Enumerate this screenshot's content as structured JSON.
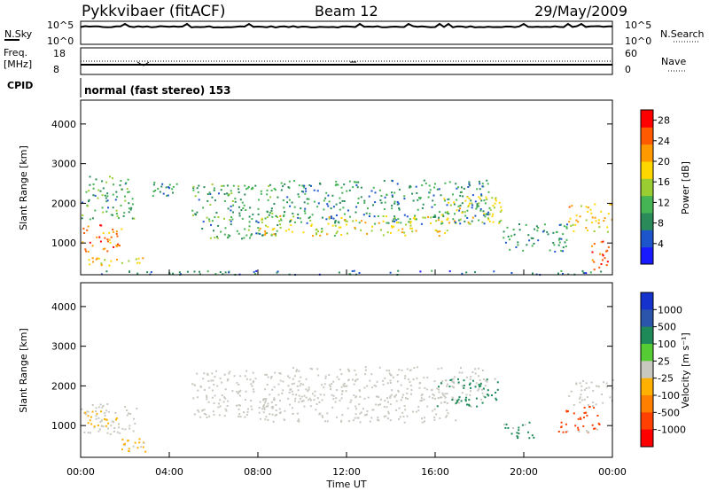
{
  "header": {
    "station": "Pykkvibaer (fitACF)",
    "beam": "Beam 12",
    "date": "29/May/2009"
  },
  "strip_panels": {
    "nsky": {
      "left_label": "N.Sky",
      "right_label": "N.Search",
      "ticks_left": [
        "10^5",
        "10^0"
      ],
      "ticks_right": [
        "10^5",
        "10^0"
      ]
    },
    "freq": {
      "left_label_1": "Freq.",
      "left_label_2": "[MHz]",
      "right_label": "Nave",
      "ticks_left": [
        "18",
        "8"
      ],
      "ticks_right": [
        "60",
        "0"
      ]
    },
    "cpid": {
      "label": "CPID",
      "text": "normal (fast stereo) 153"
    }
  },
  "colors": {
    "power": [
      "#1a1aff",
      "#1c55cc",
      "#2a8a5a",
      "#44b455",
      "#9acd32",
      "#ffd700",
      "#ff9900",
      "#ff5a00",
      "#ff0000"
    ],
    "velocity": [
      "#1533cc",
      "#2a55aa",
      "#1e8a5a",
      "#55cc33",
      "#c8c8c0",
      "#ffb000",
      "#ff8000",
      "#ff4000",
      "#ff0000"
    ]
  },
  "chart_data": [
    {
      "type": "heatmap",
      "name": "power",
      "ylabel": "Slant Range [km]",
      "yticks": [
        "1000",
        "2000",
        "3000",
        "4000"
      ],
      "ylim": [
        200,
        4600
      ],
      "xlim": [
        0,
        24
      ],
      "xticks": [
        "00:00",
        "04:00",
        "08:00",
        "12:00",
        "16:00",
        "20:00",
        "00:00"
      ],
      "colorbar": {
        "label": "Power [dB]",
        "ticks": [
          "4",
          "8",
          "12",
          "16",
          "20",
          "24",
          "28"
        ],
        "range": [
          0,
          30
        ]
      },
      "regions": [
        {
          "t": [
            0.0,
            2.0
          ],
          "r": [
            800,
            1500
          ],
          "level": 24
        },
        {
          "t": [
            0.3,
            3.0
          ],
          "r": [
            450,
            650
          ],
          "level": 20
        },
        {
          "t": [
            0.0,
            2.4
          ],
          "r": [
            1600,
            2700
          ],
          "level": 10
        },
        {
          "t": [
            3.2,
            4.4
          ],
          "r": [
            2200,
            2600
          ],
          "level": 8
        },
        {
          "t": [
            5.0,
            9.0
          ],
          "r": [
            1100,
            2500
          ],
          "level": 10
        },
        {
          "t": [
            8.0,
            17.0
          ],
          "r": [
            1200,
            1700
          ],
          "level": 18
        },
        {
          "t": [
            9.0,
            18.5
          ],
          "r": [
            1500,
            2600
          ],
          "level": 8
        },
        {
          "t": [
            16.0,
            19.0
          ],
          "r": [
            1500,
            2200
          ],
          "level": 16
        },
        {
          "t": [
            19.0,
            22.0
          ],
          "r": [
            800,
            1500
          ],
          "level": 8
        },
        {
          "t": [
            22.0,
            24.0
          ],
          "r": [
            1300,
            2000
          ],
          "level": 20
        },
        {
          "t": [
            23.0,
            23.8
          ],
          "r": [
            350,
            1100
          ],
          "level": 26
        },
        {
          "t": [
            0.0,
            24.0
          ],
          "r": [
            220,
            320
          ],
          "level": 6
        }
      ]
    },
    {
      "type": "heatmap",
      "name": "velocity",
      "ylabel": "Slant Range [km]",
      "yticks": [
        "1000",
        "2000",
        "3000",
        "4000"
      ],
      "ylim": [
        200,
        4600
      ],
      "xlim": [
        0,
        24
      ],
      "xticks": [
        "00:00",
        "04:00",
        "08:00",
        "12:00",
        "16:00",
        "20:00",
        "00:00"
      ],
      "xlabel": "Time UT",
      "colorbar": {
        "label": "Velocity [m s⁻¹]",
        "ticks": [
          "1000",
          "500",
          "100",
          "25",
          "-25",
          "-100",
          "-500",
          "-1000"
        ]
      },
      "regions": [
        {
          "t": [
            0.0,
            2.5
          ],
          "r": [
            800,
            1600
          ],
          "category": "-25"
        },
        {
          "t": [
            1.8,
            3.0
          ],
          "r": [
            350,
            700
          ],
          "category": "-100"
        },
        {
          "t": [
            0.0,
            1.6
          ],
          "r": [
            1000,
            1400
          ],
          "category": "-100"
        },
        {
          "t": [
            5.0,
            9.0
          ],
          "r": [
            1200,
            2400
          ],
          "category": "25"
        },
        {
          "t": [
            8.0,
            17.0
          ],
          "r": [
            1100,
            1800
          ],
          "category": "-25"
        },
        {
          "t": [
            9.0,
            18.5
          ],
          "r": [
            1700,
            2500
          ],
          "category": "25"
        },
        {
          "t": [
            16.0,
            19.0
          ],
          "r": [
            1500,
            2200
          ],
          "category": "100"
        },
        {
          "t": [
            21.5,
            23.5
          ],
          "r": [
            800,
            1500
          ],
          "category": "-500"
        },
        {
          "t": [
            22.0,
            24.0
          ],
          "r": [
            1500,
            2200
          ],
          "category": "-25"
        },
        {
          "t": [
            19.0,
            20.5
          ],
          "r": [
            700,
            1100
          ],
          "category": "100"
        }
      ]
    }
  ]
}
